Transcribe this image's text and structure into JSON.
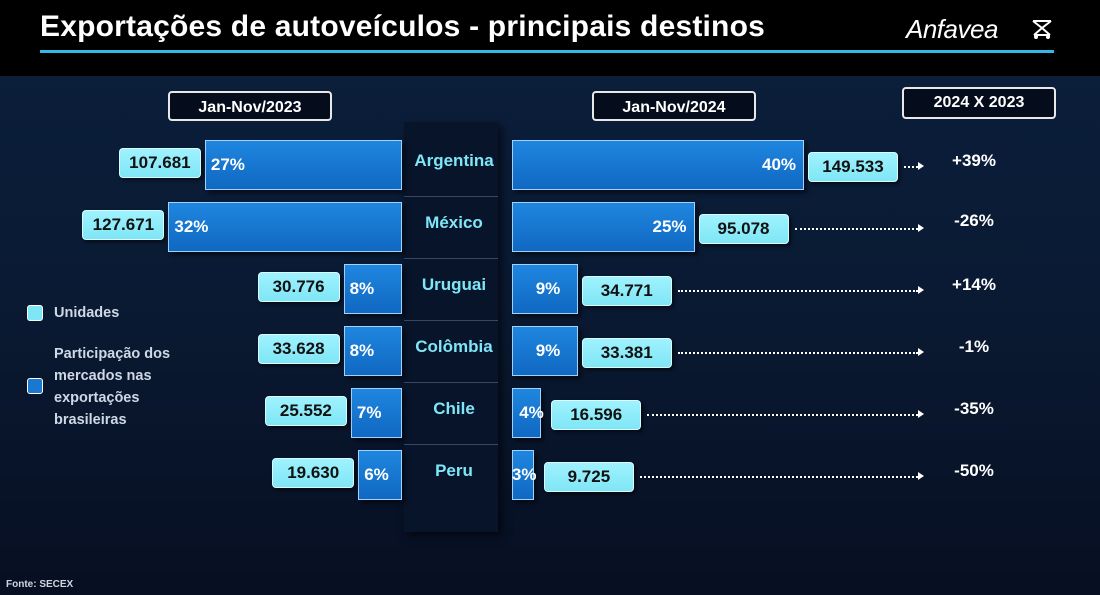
{
  "header": {
    "title": "Exportações de autoveículos - principais destinos",
    "logo": "Anfavea"
  },
  "periods": {
    "left": "Jan-Nov/2023",
    "right": "Jan-Nov/2024",
    "comparison": "2024 X 2023"
  },
  "legend": {
    "units_label": "Unidades",
    "share_label": "Participação dos mercados nas exportações brasileiras",
    "units_color": "#7fe6f5",
    "share_color": "#1a78d0"
  },
  "source": "Fonte: SECEX",
  "chart_data": {
    "type": "bar",
    "orientation": "horizontal-butterfly",
    "title": "Exportações de autoveículos - principais destinos",
    "categories": [
      "Argentina",
      "México",
      "Uruguai",
      "Colômbia",
      "Chile",
      "Peru"
    ],
    "series": [
      {
        "name": "Jan-Nov/2023",
        "share_labels": [
          "27%",
          "32%",
          "8%",
          "8%",
          "7%",
          "6%"
        ],
        "share_values": [
          27,
          32,
          8,
          8,
          7,
          6
        ],
        "unit_labels": [
          "107.681",
          "127.671",
          "30.776",
          "33.628",
          "25.552",
          "19.630"
        ],
        "unit_values": [
          107681,
          127671,
          30776,
          33628,
          25552,
          19630
        ]
      },
      {
        "name": "Jan-Nov/2024",
        "share_labels": [
          "40%",
          "25%",
          "9%",
          "9%",
          "4%",
          "3%"
        ],
        "share_values": [
          40,
          25,
          9,
          9,
          4,
          3
        ],
        "unit_labels": [
          "149.533",
          "95.078",
          "34.771",
          "33.381",
          "16.596",
          "9.725"
        ],
        "unit_values": [
          149533,
          95078,
          34771,
          33381,
          16596,
          9725
        ]
      }
    ],
    "change_labels": [
      "+39%",
      "-26%",
      "+14%",
      "-1%",
      "-35%",
      "-50%"
    ],
    "change_values": [
      39,
      -26,
      14,
      -1,
      -35,
      -50
    ]
  }
}
